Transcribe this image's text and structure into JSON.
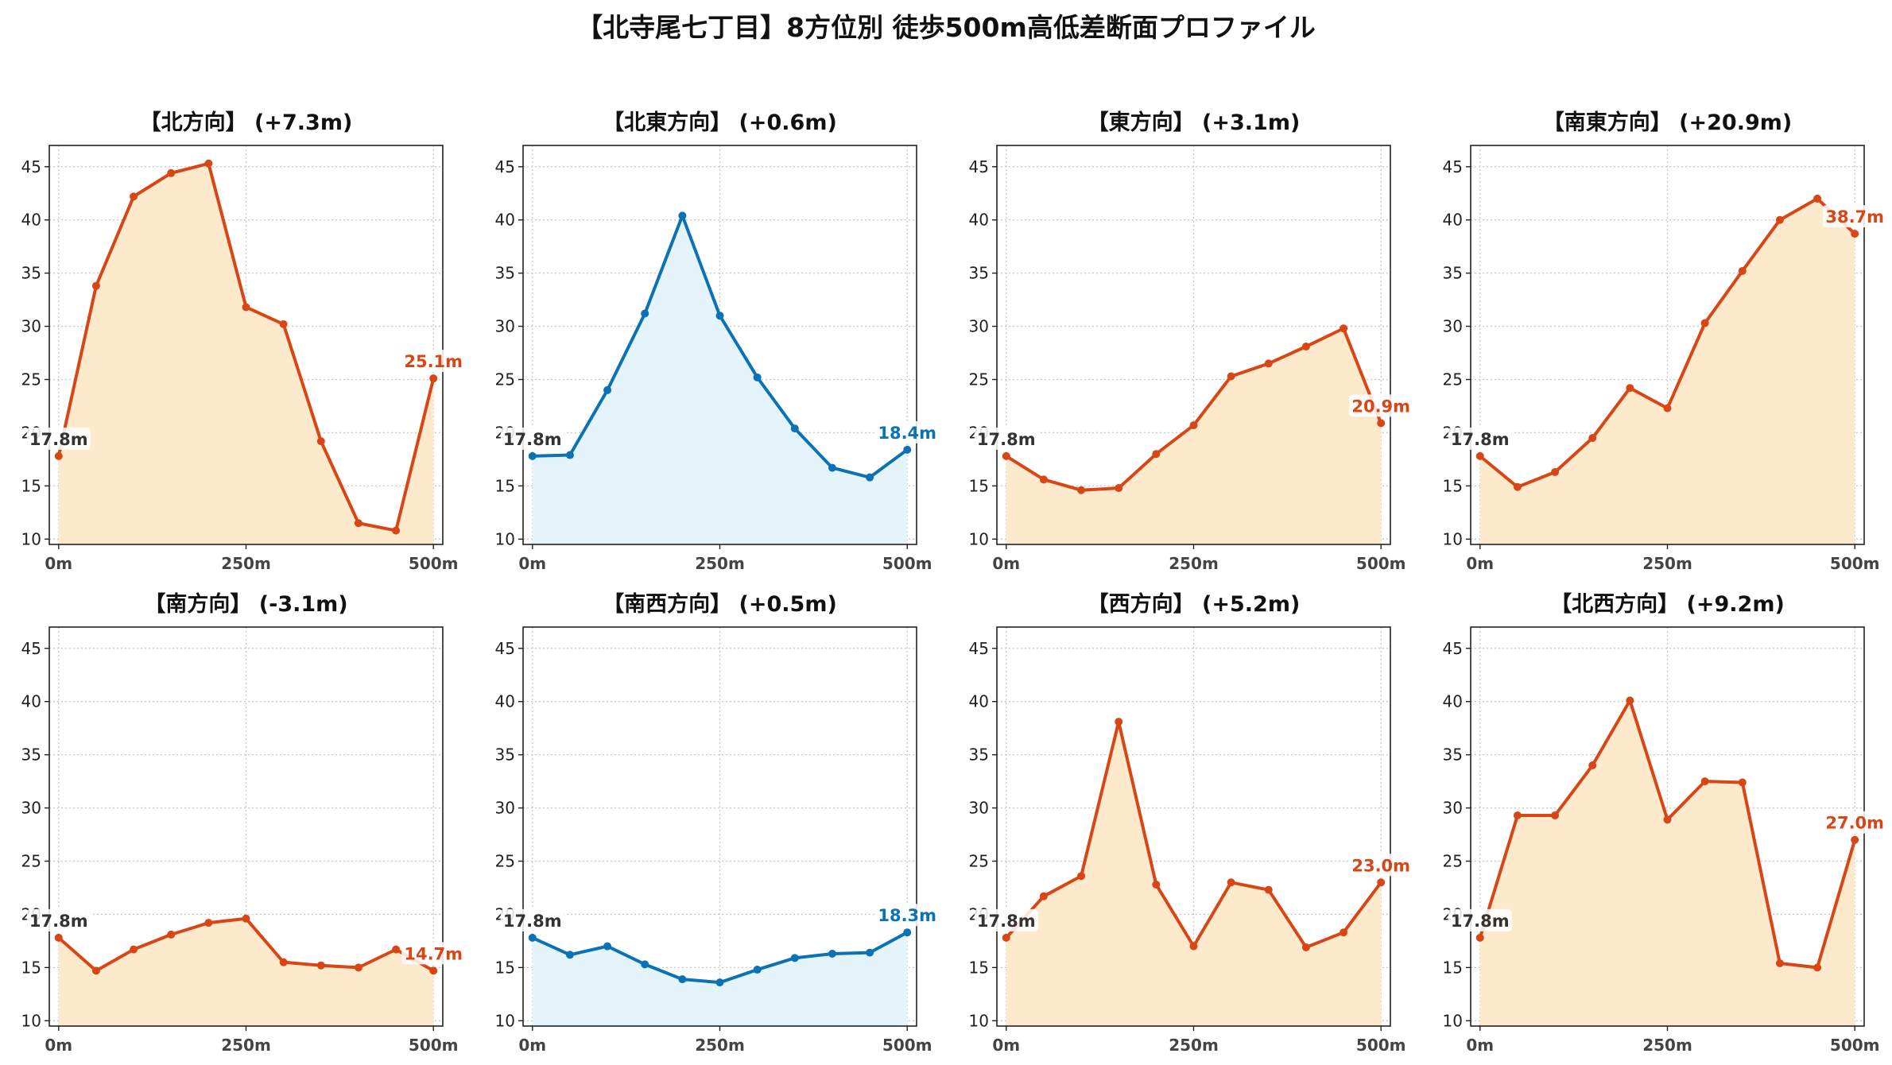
{
  "suptitle": "【北寺尾七丁目】8方位別 徒歩500m高低差断面プロファイル",
  "colors": {
    "up": "#d94616",
    "up_fill": "#fde9cc",
    "flat": "#0a72b5",
    "flat_fill": "#e5f4fb",
    "start_label": "#333333"
  },
  "chart_data": [
    {
      "type": "area",
      "title": "【北方向】 (+7.3m)",
      "x": [
        0,
        50,
        100,
        150,
        200,
        250,
        300,
        350,
        400,
        450,
        500
      ],
      "series": [
        {
          "values": [
            17.8,
            33.8,
            42.2,
            44.4,
            45.3,
            31.8,
            30.2,
            19.2,
            11.5,
            10.8,
            25.1
          ]
        }
      ],
      "xticks": [
        "0m",
        "250m",
        "500m"
      ],
      "yticks": [
        "10",
        "15",
        "20",
        "25",
        "30",
        "35",
        "40",
        "45"
      ],
      "ylim": [
        9.5,
        47
      ],
      "start_label": "17.8m",
      "end_label": "25.1m",
      "trend": "up",
      "grid": true
    },
    {
      "type": "area",
      "title": "【北東方向】 (+0.6m)",
      "x": [
        0,
        50,
        100,
        150,
        200,
        250,
        300,
        350,
        400,
        450,
        500
      ],
      "series": [
        {
          "values": [
            17.8,
            17.9,
            24.0,
            31.2,
            40.4,
            31.0,
            25.2,
            20.4,
            16.7,
            15.8,
            18.4
          ]
        }
      ],
      "xticks": [
        "0m",
        "250m",
        "500m"
      ],
      "yticks": [
        "10",
        "15",
        "20",
        "25",
        "30",
        "35",
        "40",
        "45"
      ],
      "ylim": [
        9.5,
        47
      ],
      "start_label": "17.8m",
      "end_label": "18.4m",
      "trend": "flat",
      "grid": true
    },
    {
      "type": "area",
      "title": "【東方向】 (+3.1m)",
      "x": [
        0,
        50,
        100,
        150,
        200,
        250,
        300,
        350,
        400,
        450,
        500
      ],
      "series": [
        {
          "values": [
            17.8,
            15.6,
            14.6,
            14.8,
            18.0,
            20.7,
            25.3,
            26.5,
            28.1,
            29.8,
            20.9
          ]
        }
      ],
      "xticks": [
        "0m",
        "250m",
        "500m"
      ],
      "yticks": [
        "10",
        "15",
        "20",
        "25",
        "30",
        "35",
        "40",
        "45"
      ],
      "ylim": [
        9.5,
        47
      ],
      "start_label": "17.8m",
      "end_label": "20.9m",
      "trend": "up",
      "grid": true
    },
    {
      "type": "area",
      "title": "【南東方向】 (+20.9m)",
      "x": [
        0,
        50,
        100,
        150,
        200,
        250,
        300,
        350,
        400,
        450,
        500
      ],
      "series": [
        {
          "values": [
            17.8,
            14.9,
            16.3,
            19.5,
            24.2,
            22.3,
            30.3,
            35.2,
            40.0,
            42.0,
            38.7
          ]
        }
      ],
      "xticks": [
        "0m",
        "250m",
        "500m"
      ],
      "yticks": [
        "10",
        "15",
        "20",
        "25",
        "30",
        "35",
        "40",
        "45"
      ],
      "ylim": [
        9.5,
        47
      ],
      "start_label": "17.8m",
      "end_label": "38.7m",
      "trend": "up",
      "grid": true
    },
    {
      "type": "area",
      "title": "【南方向】 (-3.1m)",
      "x": [
        0,
        50,
        100,
        150,
        200,
        250,
        300,
        350,
        400,
        450,
        500
      ],
      "series": [
        {
          "values": [
            17.8,
            14.7,
            16.7,
            18.1,
            19.2,
            19.6,
            15.5,
            15.2,
            15.0,
            16.7,
            14.7
          ]
        }
      ],
      "xticks": [
        "0m",
        "250m",
        "500m"
      ],
      "yticks": [
        "10",
        "15",
        "20",
        "25",
        "30",
        "35",
        "40",
        "45"
      ],
      "ylim": [
        9.5,
        47
      ],
      "start_label": "17.8m",
      "end_label": "14.7m",
      "trend": "up",
      "grid": true
    },
    {
      "type": "area",
      "title": "【南西方向】 (+0.5m)",
      "x": [
        0,
        50,
        100,
        150,
        200,
        250,
        300,
        350,
        400,
        450,
        500
      ],
      "series": [
        {
          "values": [
            17.8,
            16.2,
            17.0,
            15.3,
            13.9,
            13.6,
            14.8,
            15.9,
            16.3,
            16.4,
            18.3
          ]
        }
      ],
      "xticks": [
        "0m",
        "250m",
        "500m"
      ],
      "yticks": [
        "10",
        "15",
        "20",
        "25",
        "30",
        "35",
        "40",
        "45"
      ],
      "ylim": [
        9.5,
        47
      ],
      "start_label": "17.8m",
      "end_label": "18.3m",
      "trend": "flat",
      "grid": true
    },
    {
      "type": "area",
      "title": "【西方向】 (+5.2m)",
      "x": [
        0,
        50,
        100,
        150,
        200,
        250,
        300,
        350,
        400,
        450,
        500
      ],
      "series": [
        {
          "values": [
            17.8,
            21.7,
            23.6,
            38.1,
            22.8,
            17.0,
            23.0,
            22.3,
            16.9,
            18.3,
            23.0
          ]
        }
      ],
      "xticks": [
        "0m",
        "250m",
        "500m"
      ],
      "yticks": [
        "10",
        "15",
        "20",
        "25",
        "30",
        "35",
        "40",
        "45"
      ],
      "ylim": [
        9.5,
        47
      ],
      "start_label": "17.8m",
      "end_label": "23.0m",
      "trend": "up",
      "grid": true
    },
    {
      "type": "area",
      "title": "【北西方向】 (+9.2m)",
      "x": [
        0,
        50,
        100,
        150,
        200,
        250,
        300,
        350,
        400,
        450,
        500
      ],
      "series": [
        {
          "values": [
            17.8,
            29.3,
            29.3,
            34.0,
            40.1,
            28.9,
            32.5,
            32.4,
            15.4,
            15.0,
            27.0
          ]
        }
      ],
      "xticks": [
        "0m",
        "250m",
        "500m"
      ],
      "yticks": [
        "10",
        "15",
        "20",
        "25",
        "30",
        "35",
        "40",
        "45"
      ],
      "ylim": [
        9.5,
        47
      ],
      "start_label": "17.8m",
      "end_label": "27.0m",
      "trend": "up",
      "grid": true
    }
  ]
}
